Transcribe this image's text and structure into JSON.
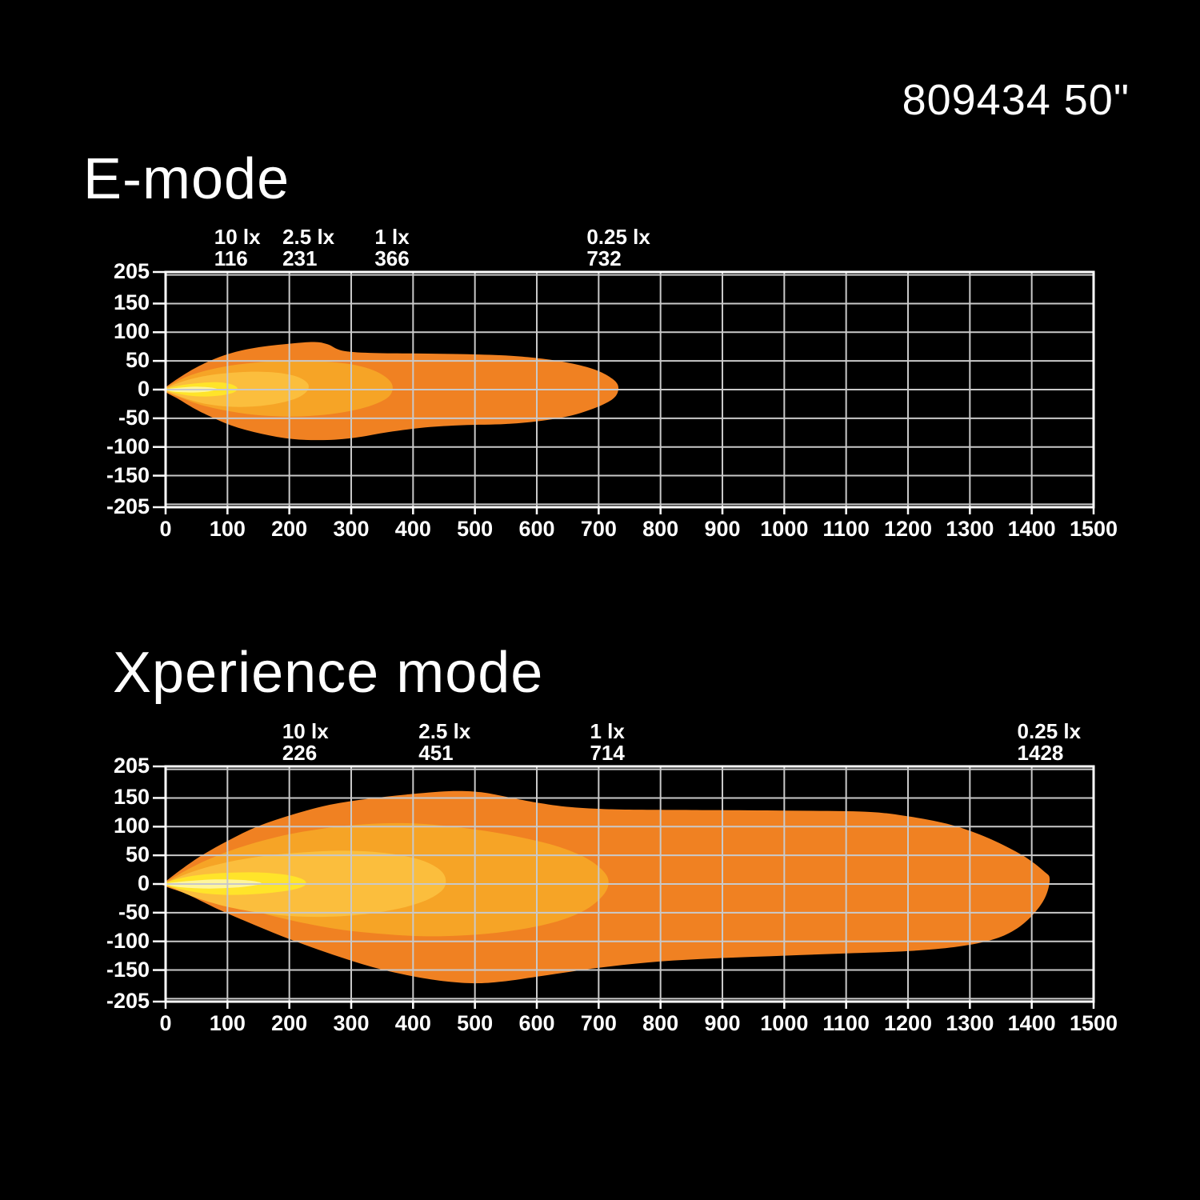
{
  "header": {
    "product_title": "809434 50\""
  },
  "styles": {
    "background": "#000000",
    "grid_color": "#C9C9C9",
    "axis_color": "#FFFFFF",
    "text_color": "#FFFFFF",
    "isolux_colors": {
      "0.25 lx": "#F08122",
      "1 lx": "#F6A426",
      "2.5 lx": "#FBBE3D",
      "10 lx": "#FFE42A",
      "hotspot": "#FFF59B"
    }
  },
  "chart_data": [
    {
      "type": "area",
      "title": "E-mode",
      "xlabel": "",
      "ylabel": "",
      "xlim": [
        0,
        1500
      ],
      "ylim": [
        -205,
        205
      ],
      "grid": true,
      "x_ticks": [
        0,
        100,
        200,
        300,
        400,
        500,
        600,
        700,
        800,
        900,
        1000,
        1100,
        1200,
        1300,
        1400,
        1500
      ],
      "y_tick_labels": [
        205,
        150,
        100,
        50,
        0,
        -50,
        -100,
        -150,
        -205
      ],
      "y_gridlines": [
        200,
        150,
        100,
        50,
        0,
        -50,
        -100,
        -150,
        -200
      ],
      "annotations": [
        {
          "lux": "10 lx",
          "distance": 116
        },
        {
          "lux": "2.5 lx",
          "distance": 231
        },
        {
          "lux": "1 lx",
          "distance": 366
        },
        {
          "lux": "0.25 lx",
          "distance": 732
        }
      ],
      "isolux_contours": [
        {
          "lux": "0.25 lx",
          "reach_m": 732,
          "color": "#F08122",
          "outline": [
            [
              0,
              4
            ],
            [
              45,
              36
            ],
            [
              95,
              60
            ],
            [
              145,
              73
            ],
            [
              200,
              80
            ],
            [
              240,
              83
            ],
            [
              262,
              79
            ],
            [
              285,
              68
            ],
            [
              330,
              64
            ],
            [
              400,
              63
            ],
            [
              470,
              62
            ],
            [
              540,
              60
            ],
            [
              590,
              56
            ],
            [
              640,
              49
            ],
            [
              685,
              38
            ],
            [
              715,
              24
            ],
            [
              731,
              8
            ],
            [
              727,
              -12
            ],
            [
              703,
              -28
            ],
            [
              660,
              -44
            ],
            [
              610,
              -54
            ],
            [
              550,
              -60
            ],
            [
              480,
              -62
            ],
            [
              420,
              -66
            ],
            [
              360,
              -74
            ],
            [
              305,
              -84
            ],
            [
              255,
              -88
            ],
            [
              205,
              -86
            ],
            [
              155,
              -77
            ],
            [
              105,
              -62
            ],
            [
              55,
              -38
            ],
            [
              20,
              -16
            ],
            [
              0,
              -4
            ]
          ]
        },
        {
          "lux": "1 lx",
          "reach_m": 366,
          "color": "#F6A426",
          "outline": [
            [
              0,
              3
            ],
            [
              40,
              25
            ],
            [
              90,
              39
            ],
            [
              145,
              47
            ],
            [
              205,
              51
            ],
            [
              255,
              49
            ],
            [
              300,
              44
            ],
            [
              335,
              34
            ],
            [
              358,
              20
            ],
            [
              367,
              5
            ],
            [
              361,
              -12
            ],
            [
              337,
              -26
            ],
            [
              300,
              -37
            ],
            [
              255,
              -44
            ],
            [
              205,
              -47
            ],
            [
              155,
              -45
            ],
            [
              105,
              -38
            ],
            [
              58,
              -27
            ],
            [
              22,
              -13
            ],
            [
              0,
              -3
            ]
          ]
        },
        {
          "lux": "2.5 lx",
          "reach_m": 231,
          "color": "#FBBE3D",
          "outline": [
            [
              0,
              2
            ],
            [
              30,
              15
            ],
            [
              70,
              25
            ],
            [
              115,
              30
            ],
            [
              155,
              31
            ],
            [
              190,
              28
            ],
            [
              216,
              21
            ],
            [
              230,
              10
            ],
            [
              229,
              -2
            ],
            [
              214,
              -14
            ],
            [
              186,
              -23
            ],
            [
              148,
              -29
            ],
            [
              108,
              -30
            ],
            [
              65,
              -25
            ],
            [
              28,
              -14
            ],
            [
              0,
              -2
            ]
          ]
        },
        {
          "lux": "10 lx",
          "reach_m": 116,
          "color": "#FFE42A",
          "outline": [
            [
              0,
              1
            ],
            [
              22,
              7
            ],
            [
              50,
              11
            ],
            [
              80,
              13
            ],
            [
              100,
              11
            ],
            [
              113,
              6
            ],
            [
              116,
              1
            ],
            [
              110,
              -5
            ],
            [
              90,
              -10
            ],
            [
              62,
              -12
            ],
            [
              35,
              -10
            ],
            [
              12,
              -5
            ],
            [
              0,
              -1
            ]
          ]
        },
        {
          "lux": "hotspot",
          "reach_m": 85,
          "color": "#FFF59B",
          "outline": [
            [
              0,
              1
            ],
            [
              20,
              3
            ],
            [
              45,
              5
            ],
            [
              70,
              4
            ],
            [
              83,
              1
            ],
            [
              70,
              -3
            ],
            [
              45,
              -5
            ],
            [
              18,
              -4
            ],
            [
              0,
              -1
            ]
          ]
        }
      ]
    },
    {
      "type": "area",
      "title": "Xperience mode",
      "xlabel": "",
      "ylabel": "",
      "xlim": [
        0,
        1500
      ],
      "ylim": [
        -205,
        205
      ],
      "grid": true,
      "x_ticks": [
        0,
        100,
        200,
        300,
        400,
        500,
        600,
        700,
        800,
        900,
        1000,
        1100,
        1200,
        1300,
        1400,
        1500
      ],
      "y_tick_labels": [
        205,
        150,
        100,
        50,
        0,
        -50,
        -100,
        -150,
        -205
      ],
      "y_gridlines": [
        200,
        150,
        100,
        50,
        0,
        -50,
        -100,
        -150,
        -200
      ],
      "annotations": [
        {
          "lux": "10 lx",
          "distance": 226
        },
        {
          "lux": "2.5 lx",
          "distance": 451
        },
        {
          "lux": "1 lx",
          "distance": 714
        },
        {
          "lux": "0.25 lx",
          "distance": 1428
        }
      ],
      "isolux_contours": [
        {
          "lux": "0.25 lx",
          "reach_m": 1428,
          "color": "#F08122",
          "outline": [
            [
              0,
              4
            ],
            [
              50,
              44
            ],
            [
              100,
              75
            ],
            [
              150,
              101
            ],
            [
              205,
              121
            ],
            [
              265,
              138
            ],
            [
              330,
              149
            ],
            [
              400,
              157
            ],
            [
              465,
              162
            ],
            [
              510,
              160
            ],
            [
              555,
              151
            ],
            [
              600,
              142
            ],
            [
              655,
              134
            ],
            [
              730,
              130
            ],
            [
              850,
              129
            ],
            [
              1000,
              128
            ],
            [
              1130,
              126
            ],
            [
              1200,
              118
            ],
            [
              1270,
              103
            ],
            [
              1330,
              80
            ],
            [
              1385,
              50
            ],
            [
              1420,
              22
            ],
            [
              1429,
              8
            ],
            [
              1421,
              -25
            ],
            [
              1398,
              -58
            ],
            [
              1368,
              -83
            ],
            [
              1330,
              -99
            ],
            [
              1275,
              -110
            ],
            [
              1200,
              -117
            ],
            [
              1100,
              -121
            ],
            [
              1000,
              -125
            ],
            [
              900,
              -129
            ],
            [
              800,
              -135
            ],
            [
              700,
              -146
            ],
            [
              610,
              -160
            ],
            [
              545,
              -170
            ],
            [
              500,
              -173
            ],
            [
              455,
              -170
            ],
            [
              400,
              -161
            ],
            [
              335,
              -145
            ],
            [
              270,
              -123
            ],
            [
              205,
              -98
            ],
            [
              145,
              -72
            ],
            [
              85,
              -44
            ],
            [
              35,
              -18
            ],
            [
              0,
              -4
            ]
          ]
        },
        {
          "lux": "1 lx",
          "reach_m": 714,
          "color": "#F6A426",
          "outline": [
            [
              0,
              3
            ],
            [
              55,
              36
            ],
            [
              115,
              62
            ],
            [
              180,
              82
            ],
            [
              250,
              96
            ],
            [
              320,
              104
            ],
            [
              390,
              106
            ],
            [
              455,
              101
            ],
            [
              520,
              92
            ],
            [
              580,
              80
            ],
            [
              635,
              65
            ],
            [
              680,
              45
            ],
            [
              708,
              22
            ],
            [
              716,
              2
            ],
            [
              707,
              -20
            ],
            [
              682,
              -43
            ],
            [
              645,
              -61
            ],
            [
              595,
              -75
            ],
            [
              535,
              -85
            ],
            [
              475,
              -90
            ],
            [
              415,
              -91
            ],
            [
              350,
              -87
            ],
            [
              280,
              -79
            ],
            [
              210,
              -65
            ],
            [
              145,
              -48
            ],
            [
              85,
              -30
            ],
            [
              35,
              -14
            ],
            [
              0,
              -3
            ]
          ]
        },
        {
          "lux": "2.5 lx",
          "reach_m": 451,
          "color": "#FBBE3D",
          "outline": [
            [
              0,
              2
            ],
            [
              45,
              22
            ],
            [
              100,
              38
            ],
            [
              160,
              49
            ],
            [
              220,
              55
            ],
            [
              280,
              58
            ],
            [
              335,
              56
            ],
            [
              385,
              49
            ],
            [
              422,
              38
            ],
            [
              446,
              22
            ],
            [
              453,
              5
            ],
            [
              447,
              -11
            ],
            [
              424,
              -27
            ],
            [
              388,
              -40
            ],
            [
              340,
              -50
            ],
            [
              285,
              -56
            ],
            [
              225,
              -57
            ],
            [
              165,
              -52
            ],
            [
              105,
              -41
            ],
            [
              52,
              -25
            ],
            [
              18,
              -10
            ],
            [
              0,
              -2
            ]
          ]
        },
        {
          "lux": "10 lx",
          "reach_m": 226,
          "color": "#FFE42A",
          "outline": [
            [
              0,
              2
            ],
            [
              28,
              11
            ],
            [
              65,
              17
            ],
            [
              110,
              20
            ],
            [
              155,
              20
            ],
            [
              195,
              16
            ],
            [
              220,
              9
            ],
            [
              227,
              2
            ],
            [
              221,
              -5
            ],
            [
              195,
              -12
            ],
            [
              152,
              -17
            ],
            [
              105,
              -19
            ],
            [
              60,
              -16
            ],
            [
              24,
              -9
            ],
            [
              0,
              -2
            ]
          ]
        },
        {
          "lux": "hotspot",
          "reach_m": 152,
          "color": "#FFF59B",
          "outline": [
            [
              0,
              1
            ],
            [
              35,
              5
            ],
            [
              80,
              8
            ],
            [
              125,
              7
            ],
            [
              152,
              3
            ],
            [
              150,
              -1
            ],
            [
              115,
              -6
            ],
            [
              70,
              -8
            ],
            [
              28,
              -6
            ],
            [
              0,
              -1
            ]
          ]
        }
      ]
    }
  ]
}
